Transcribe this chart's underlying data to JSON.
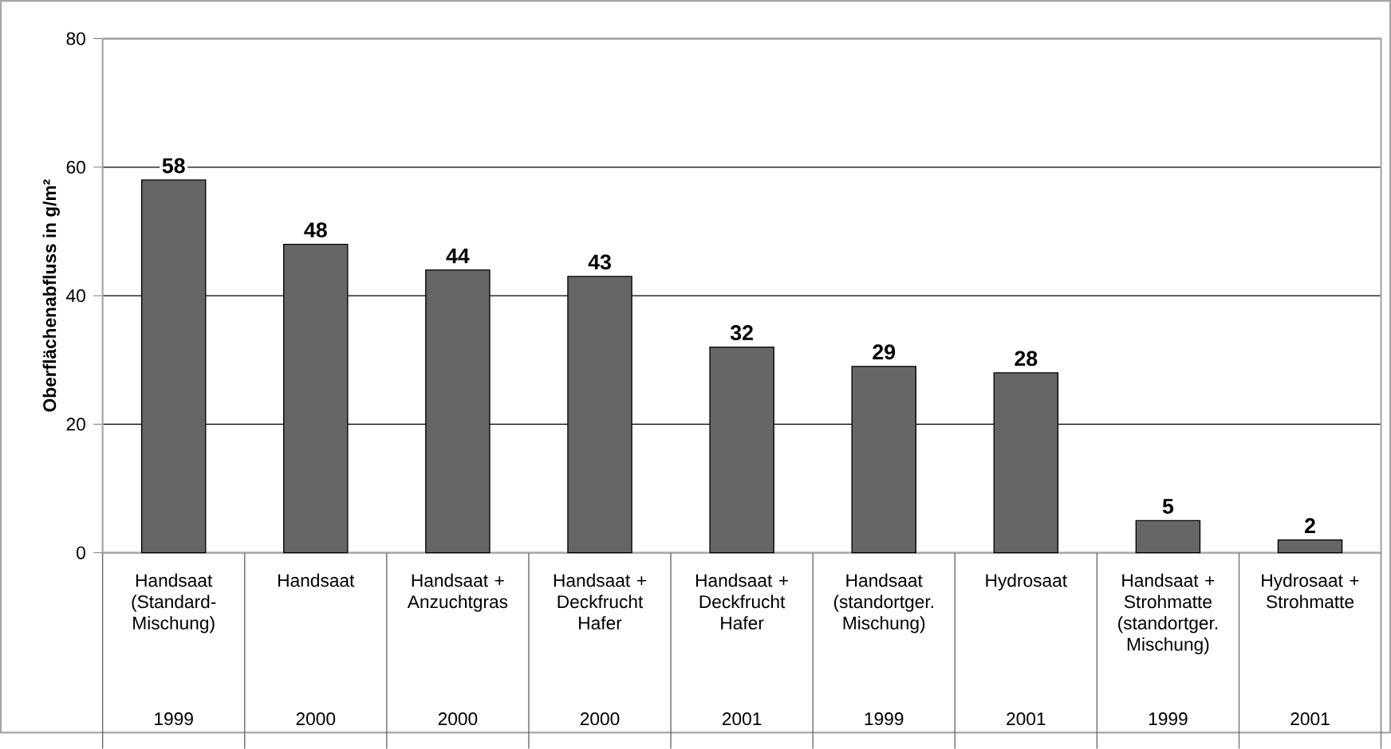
{
  "chart_data": {
    "type": "bar",
    "ylabel": "Oberflächenabfluss in g/m²",
    "categories": [
      "Handsaat (Standard-Mischung)",
      "Handsaat",
      "Handsaat + Anzuchtgras",
      "Handsaat + Deckfrucht Hafer",
      "Handsaat + Deckfrucht Hafer",
      "Handsaat (standortger. Mischung)",
      "Hydrosaat",
      "Handsaat + Strohmatte (standortger. Mischung)",
      "Hydrosaat + Strohmatte"
    ],
    "values": [
      58,
      48,
      44,
      43,
      32,
      29,
      28,
      5,
      2
    ],
    "color": "#666666",
    "ylim": [
      0,
      80
    ],
    "yticks": [
      0,
      20,
      40,
      60,
      80
    ],
    "grid": "y",
    "data_labels": true,
    "annotations": [
      "1999",
      "2000",
      "2000",
      "2000",
      "2001",
      "1999",
      "2001",
      "1999",
      "2001"
    ]
  }
}
